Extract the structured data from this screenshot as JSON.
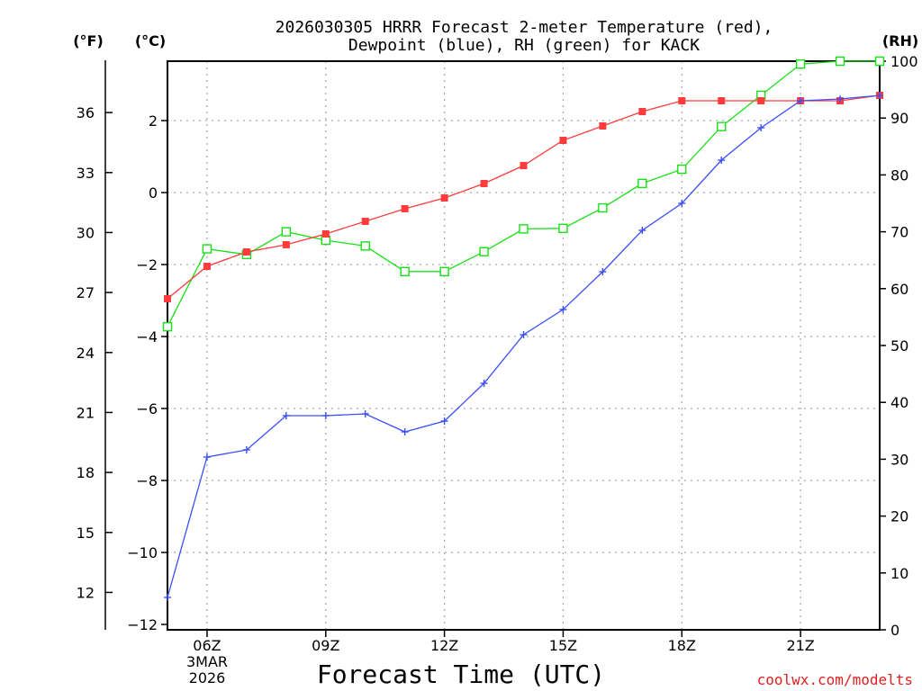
{
  "chart_data": {
    "type": "line",
    "title_line1": "2026030305 HRRR Forecast 2-meter Temperature (red),",
    "title_line2": "Dewpoint (blue), RH (green) for KACK",
    "xlabel": "Forecast Time (UTC)",
    "watermark": "coolwx.com/modelts",
    "units": {
      "fahrenheit": "(°F)",
      "celsius": "(°C)",
      "rh": "(RH)"
    },
    "x_hours": [
      5,
      6,
      7,
      8,
      9,
      10,
      11,
      12,
      13,
      14,
      15,
      16,
      17,
      18,
      19,
      20,
      21,
      22,
      23
    ],
    "xlim": [
      5,
      23
    ],
    "x_ticks": [
      {
        "hour": 6,
        "label": "06Z"
      },
      {
        "hour": 9,
        "label": "09Z"
      },
      {
        "hour": 12,
        "label": "12Z"
      },
      {
        "hour": 15,
        "label": "15Z"
      },
      {
        "hour": 18,
        "label": "18Z"
      },
      {
        "hour": 21,
        "label": "21Z"
      }
    ],
    "date_label_line1": "3MAR",
    "date_label_line2": "2026",
    "celsius_ylim": [
      -12.15,
      3.65
    ],
    "celsius_ticks": [
      {
        "v": 2,
        "label": "2"
      },
      {
        "v": 0,
        "label": "0"
      },
      {
        "v": -2,
        "label": "−2"
      },
      {
        "v": -4,
        "label": "−4"
      },
      {
        "v": -6,
        "label": "−6"
      },
      {
        "v": -8,
        "label": "−8"
      },
      {
        "v": -10,
        "label": "−10"
      },
      {
        "v": -12,
        "label": "−12"
      }
    ],
    "fahrenheit_ticks": [
      "12",
      "15",
      "18",
      "21",
      "24",
      "27",
      "30",
      "33",
      "36"
    ],
    "rh_ylim": [
      0,
      100
    ],
    "rh_ticks": [
      "0",
      "10",
      "20",
      "30",
      "40",
      "50",
      "60",
      "70",
      "80",
      "90",
      "100"
    ],
    "series": [
      {
        "name": "Temperature",
        "units": "C",
        "color": "#ff3b3b",
        "marker": "filled-square",
        "values": [
          -2.95,
          -2.05,
          -1.65,
          -1.45,
          -1.15,
          -0.8,
          -0.45,
          -0.15,
          0.25,
          0.75,
          1.45,
          1.85,
          2.25,
          2.55,
          2.55,
          2.55,
          2.55,
          2.55,
          2.7
        ]
      },
      {
        "name": "Dewpoint",
        "units": "C",
        "color": "#3a4fff",
        "marker": "plus",
        "values": [
          -11.25,
          -7.35,
          -7.15,
          -6.2,
          -6.2,
          -6.15,
          -6.65,
          -6.35,
          -5.3,
          -3.95,
          -3.25,
          -2.2,
          -1.05,
          -0.3,
          0.9,
          1.8,
          2.55,
          2.6,
          2.7
        ]
      },
      {
        "name": "RH",
        "units": "%",
        "color": "#18e018",
        "marker": "open-square",
        "values": [
          53.3,
          67,
          66,
          70,
          68.5,
          67.5,
          63,
          63,
          66.5,
          70.5,
          70.6,
          74.2,
          78.5,
          81,
          88.5,
          94,
          99.5,
          100,
          100
        ]
      }
    ]
  }
}
